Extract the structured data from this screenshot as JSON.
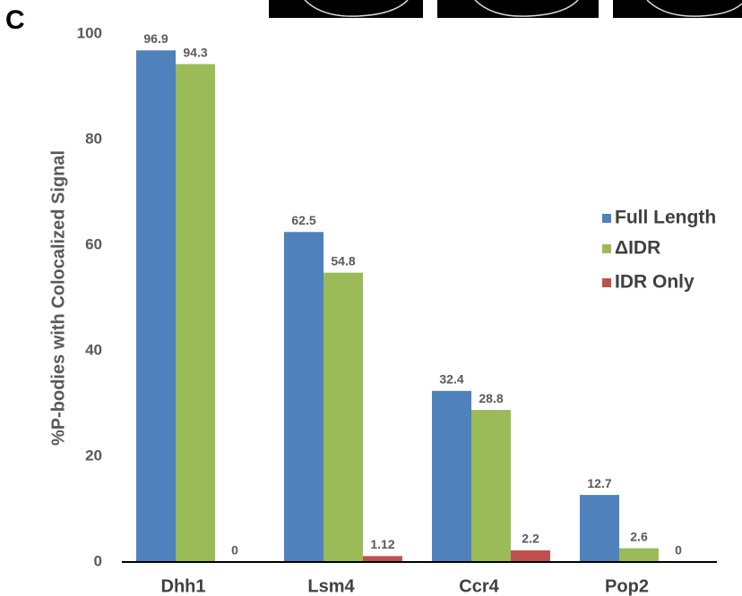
{
  "panel_label": "C",
  "chart_data": {
    "type": "bar",
    "y_label": "%P-bodies with Colocalized Signal",
    "categories": [
      "Dhh1",
      "Lsm4",
      "Ccr4",
      "Pop2"
    ],
    "series": [
      {
        "name": "Full Length",
        "color": "#4f81bd",
        "values": [
          96.9,
          62.5,
          32.4,
          12.7
        ]
      },
      {
        "name": "ΔIDR",
        "color": "#9bbb59",
        "values": [
          94.3,
          54.8,
          28.8,
          2.6
        ]
      },
      {
        "name": "IDR Only",
        "color": "#c0504d",
        "values": [
          0,
          1.12,
          2.2,
          0
        ]
      }
    ],
    "ylim": [
      0,
      100
    ],
    "yticks": [
      0,
      20,
      40,
      60,
      80,
      100
    ],
    "grid": false,
    "legend": "right"
  }
}
